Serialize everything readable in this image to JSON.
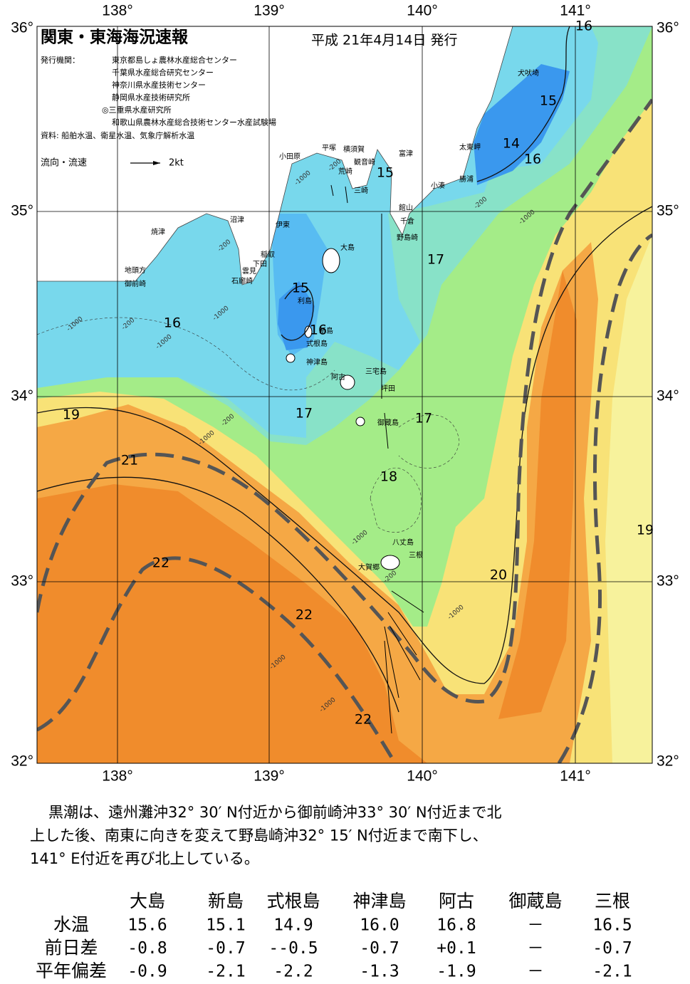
{
  "map": {
    "title": "関東・東海海況速報",
    "date": "平成 21年4月14日 発行",
    "issuer_label": "発行機関：",
    "issuers": [
      "東京都島しょ農林水産総合センター",
      "千葉県水産総合研究センター",
      "神奈川県水産技術センター",
      "静岡県水産技術研究所",
      "◎三重県水産研究所",
      "和歌山県農林水産総合技術センター水産試験場"
    ],
    "source": "資料: 船舶水温、衛星水温、気象庁解析水温",
    "legend_label": "流向・流速",
    "legend_scale": "2kt",
    "lon_labels": [
      "138°",
      "139°",
      "140°",
      "141°"
    ],
    "lat_labels": [
      "36°",
      "35°",
      "34°",
      "33°",
      "32°"
    ],
    "places": [
      "犬吠埼",
      "太東岬",
      "勝浦",
      "小湊",
      "館山",
      "千倉",
      "野島崎",
      "富津",
      "横須賀",
      "観音崎",
      "荒崎",
      "三崎",
      "平塚",
      "小田原",
      "沼津",
      "伊東",
      "稲取",
      "下田",
      "雲見",
      "石廊崎",
      "焼津",
      "地頭方",
      "御前崎",
      "大島",
      "利島",
      "新島",
      "式根島",
      "神津島",
      "三宅島",
      "阿古",
      "坪田",
      "御蔵島",
      "八丈島",
      "三根",
      "大賀郷"
    ],
    "temperature_labels": [
      "15",
      "14",
      "16",
      "15",
      "17",
      "15",
      "16",
      "16",
      "19",
      "17",
      "17",
      "21",
      "18",
      "22",
      "20",
      "22",
      "22",
      "19",
      "16"
    ],
    "depth_labels": [
      "-1000",
      "-200",
      "-1000",
      "-200",
      "-1000",
      "-200",
      "-1000",
      "-200",
      "-1000",
      "-200",
      "-1000",
      "-1000",
      "-1000",
      "-1000",
      "-200",
      "-1000"
    ]
  },
  "summary": [
    "黒潮は、遠州灘沖32° 30′ N付近から御前崎沖33° 30′ N付近まで北",
    "上した後、南東に向きを変えて野島崎沖32° 15′ N付近まで南下し、",
    "141° E付近を再び北上している。"
  ],
  "table": {
    "columns": [
      "大島",
      "新島",
      "式根島",
      "神津島",
      "阿古",
      "御蔵島",
      "三根"
    ],
    "rows": [
      {
        "label": "水温",
        "values": [
          "15.6",
          "15.1",
          "14.9",
          "16.0",
          "16.8",
          "－",
          "16.5"
        ]
      },
      {
        "label": "前日差",
        "values": [
          "-0.8",
          "-0.7",
          "--0.5",
          "-0.7",
          "+0.1",
          "－",
          "-0.7"
        ]
      },
      {
        "label": "平年偏差",
        "values": [
          "-0.9",
          "-2.1",
          "-2.2",
          "-1.3",
          "-1.9",
          "－",
          "-2.1"
        ]
      }
    ]
  }
}
